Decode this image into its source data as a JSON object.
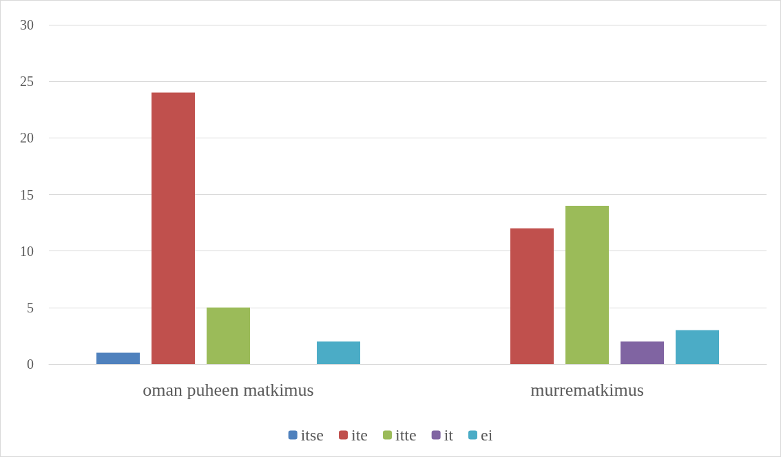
{
  "chart_data": {
    "type": "bar",
    "categories": [
      "oman puheen matkimus",
      "murrematkimus"
    ],
    "series": [
      {
        "name": "itse",
        "color": "#4f81bd",
        "values": [
          1,
          0
        ]
      },
      {
        "name": "ite",
        "color": "#c0504d",
        "values": [
          24,
          12
        ]
      },
      {
        "name": "itte",
        "color": "#9bbb59",
        "values": [
          5,
          14
        ]
      },
      {
        "name": "it",
        "color": "#8064a2",
        "values": [
          0,
          2
        ]
      },
      {
        "name": "ei",
        "color": "#4bacc6",
        "values": [
          2,
          3
        ]
      }
    ],
    "ylim": [
      0,
      30
    ],
    "yticks": [
      0,
      5,
      10,
      15,
      20,
      25,
      30
    ],
    "grid": "y",
    "legend": "bottom"
  }
}
